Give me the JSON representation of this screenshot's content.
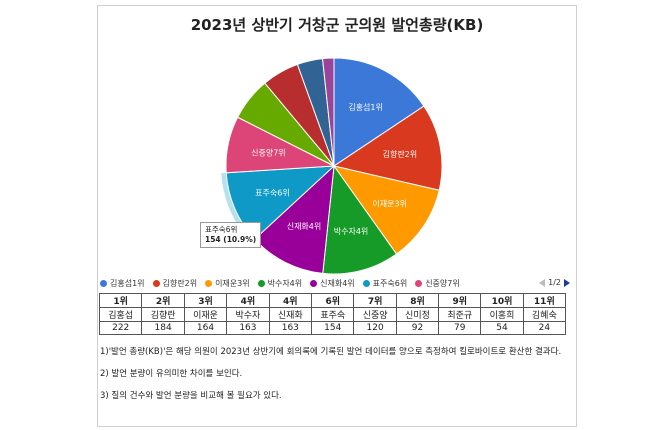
{
  "chart_data": {
    "type": "pie",
    "title": "2023년 상반기 거창군 군의원 발언총량(KB)",
    "slices": [
      {
        "label": "김홍섭1위",
        "legend": "김홍섭1위",
        "value": 222,
        "color": "#3c78d8"
      },
      {
        "label": "김향란2위",
        "legend": "김향란2위",
        "value": 184,
        "color": "#d9391f"
      },
      {
        "label": "이재운3위",
        "legend": "이재운3위",
        "value": 164,
        "color": "#ff9900"
      },
      {
        "label": "박수자4위",
        "legend": "박수자4위",
        "value": 163,
        "color": "#169b28"
      },
      {
        "label": "신재화4위",
        "legend": "신재화4위",
        "value": 163,
        "color": "#990099"
      },
      {
        "label": "표주숙6위",
        "legend": "표주숙6위",
        "value": 154,
        "color": "#0e99c6"
      },
      {
        "label": "신중양7위",
        "legend": "신중양7위",
        "value": 120,
        "color": "#dd4477"
      },
      {
        "label": "",
        "legend": "",
        "value": 92,
        "color": "#66aa00"
      },
      {
        "label": "",
        "legend": "",
        "value": 79,
        "color": "#b82e2e"
      },
      {
        "label": "",
        "legend": "",
        "value": 54,
        "color": "#316395"
      },
      {
        "label": "",
        "legend": "",
        "value": 24,
        "color": "#994499"
      }
    ],
    "highlighted": {
      "label": "표주숙6위",
      "value_text": "154 (10.9%)"
    },
    "legend_position": "bottom",
    "legend_pager": "1/2"
  },
  "table": {
    "ranks": [
      "1위",
      "2위",
      "3위",
      "4위",
      "4위",
      "6위",
      "7위",
      "8위",
      "9위",
      "10위",
      "11위"
    ],
    "names": [
      "김홍섭",
      "김향란",
      "이재운",
      "박수자",
      "신재화",
      "표주숙",
      "신중양",
      "신미정",
      "최준규",
      "이홍희",
      "김혜숙"
    ],
    "values": [
      "222",
      "184",
      "164",
      "163",
      "163",
      "154",
      "120",
      "92",
      "79",
      "54",
      "24"
    ]
  },
  "notes": [
    "1)'발언 총량(KB)'은 해당 의원이 2023년 상반기에 회의록에 기록된 발언 데이터를 양으로 측정하여 킬로바이트로 환산한 결과다.",
    "2) 발언 분량이 유의미한 차이를 보인다.",
    "3) 질의 건수와 발언 분량을 비교해 볼 필요가 있다."
  ]
}
